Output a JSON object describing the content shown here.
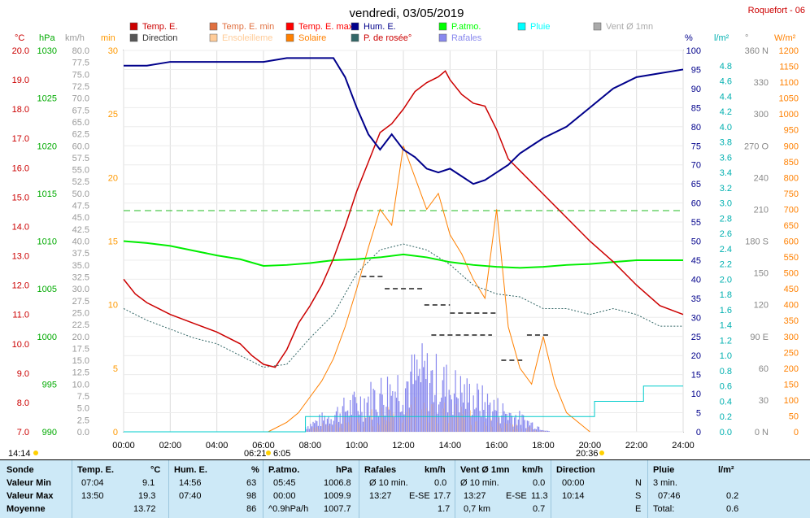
{
  "title": "vendredi, 03/05/2019",
  "station": "Roquefort - 06",
  "legend": [
    {
      "label": "Temp. E.",
      "color": "#cc0000"
    },
    {
      "label": "Temp. E. min",
      "color": "#e07040"
    },
    {
      "label": "Temp. E. max",
      "color": "#ff0000"
    },
    {
      "label": "Hum. E.",
      "color": "#00008b"
    },
    {
      "label": "P.atmo.",
      "color": "#00ff00"
    },
    {
      "label": "Pluie",
      "color": "#00ffff"
    },
    {
      "label": "Vent Ø 1mn",
      "color": "#aaaaaa"
    },
    {
      "label": "Direction",
      "color": "#555555"
    },
    {
      "label": "Ensoleilleme",
      "color": "#ffcc99"
    },
    {
      "label": "Solaire",
      "color": "#ff8000"
    },
    {
      "label": "P. de rosée°",
      "color": "#336666"
    },
    {
      "label": "Rafales",
      "color": "#8888ee"
    }
  ],
  "axes": {
    "temp_unit": "°C",
    "temp_ticks": [
      "20.0",
      "19.0",
      "18.0",
      "17.0",
      "16.0",
      "15.0",
      "14.0",
      "13.0",
      "12.0",
      "11.0",
      "10.0",
      "9.0",
      "8.0",
      "7.0"
    ],
    "press_unit": "hPa",
    "press_ticks": [
      "1030",
      "1025",
      "1020",
      "1015",
      "1010",
      "1005",
      "1000",
      "995",
      "990"
    ],
    "wind_unit": "km/h",
    "wind_ticks": [
      "80.0",
      "77.5",
      "75.0",
      "72.5",
      "70.0",
      "67.5",
      "65.0",
      "62.5",
      "60.0",
      "57.5",
      "55.0",
      "52.5",
      "50.0",
      "47.5",
      "45.0",
      "42.5",
      "40.0",
      "37.5",
      "35.0",
      "32.5",
      "30.0",
      "27.5",
      "25.0",
      "22.5",
      "20.0",
      "17.5",
      "15.0",
      "12.5",
      "10.0",
      "7.5",
      "5.0",
      "2.5",
      "0.0"
    ],
    "min_unit": "min",
    "min_ticks": [
      "30",
      "25",
      "20",
      "15",
      "10",
      "5",
      "0"
    ],
    "hum_unit": "%",
    "hum_ticks": [
      "100",
      "95",
      "90",
      "85",
      "80",
      "75",
      "70",
      "65",
      "60",
      "55",
      "50",
      "45",
      "40",
      "35",
      "30",
      "25",
      "20",
      "15",
      "10",
      "5",
      "0"
    ],
    "rain_unit": "l/m²",
    "rain_ticks": [
      "4.8",
      "4.6",
      "4.4",
      "4.2",
      "4.0",
      "3.8",
      "3.6",
      "3.4",
      "3.2",
      "3.0",
      "2.8",
      "2.6",
      "2.4",
      "2.2",
      "2.0",
      "1.8",
      "1.6",
      "1.4",
      "1.2",
      "1.0",
      "0.8",
      "0.6",
      "0.4",
      "0.2",
      "0.0"
    ],
    "dir_unit": "°",
    "dir_ticks": [
      "360 N",
      "330",
      "300",
      "270 O",
      "240",
      "210",
      "180 S",
      "150",
      "120",
      "90 E",
      "60",
      "30",
      "0 N"
    ],
    "sol_unit": "W/m²",
    "sol_ticks": [
      "1200",
      "1150",
      "1100",
      "1050",
      "1000",
      "950",
      "900",
      "850",
      "800",
      "750",
      "700",
      "650",
      "600",
      "550",
      "500",
      "450",
      "400",
      "350",
      "300",
      "250",
      "200",
      "150",
      "100",
      "50",
      "0"
    ],
    "x_ticks": [
      "00:00",
      "02:00",
      "04:00",
      "06:00",
      "08:00",
      "10:00",
      "12:00",
      "14:00",
      "16:00",
      "18:00",
      "20:00",
      "22:00",
      "24:00"
    ]
  },
  "sun_marks": {
    "left": "14:14",
    "sunrise": "06:21",
    "sunrise2": "6:05",
    "sunset": "20:36"
  },
  "chart_data": {
    "type": "line",
    "x_unit": "hours",
    "series": [
      {
        "name": "Temp. E.",
        "unit": "°C",
        "x": [
          0,
          0.5,
          1,
          1.5,
          2,
          3,
          4,
          5,
          5.5,
          6,
          6.5,
          7,
          7.5,
          8,
          8.5,
          9,
          9.5,
          10,
          10.5,
          11,
          11.5,
          12,
          12.5,
          13,
          13.5,
          13.8,
          14,
          14.5,
          15,
          15.5,
          16,
          16.5,
          17,
          18,
          19,
          20,
          21,
          22,
          23,
          24
        ],
        "y": [
          12.2,
          11.7,
          11.4,
          11.2,
          11.0,
          10.7,
          10.4,
          10.0,
          9.6,
          9.3,
          9.2,
          9.8,
          10.7,
          11.3,
          12.0,
          12.9,
          14.0,
          15.2,
          16.2,
          17.2,
          17.5,
          18.0,
          18.6,
          18.9,
          19.1,
          19.3,
          19.0,
          18.5,
          18.2,
          18.1,
          17.3,
          16.3,
          15.9,
          15.1,
          14.3,
          13.5,
          12.8,
          12.0,
          11.3,
          11.0
        ]
      },
      {
        "name": "Hum. E.",
        "unit": "%",
        "x": [
          0,
          1,
          2,
          3,
          4,
          5,
          6,
          7,
          8,
          9,
          9.5,
          10,
          10.5,
          11,
          11.5,
          12,
          12.5,
          13,
          13.5,
          14,
          14.5,
          15,
          15.5,
          16,
          16.5,
          17,
          17.5,
          18,
          19,
          20,
          21,
          22,
          23,
          24
        ],
        "y": [
          96,
          96,
          97,
          97,
          97,
          97,
          97,
          98,
          98,
          98,
          93,
          85,
          78,
          74,
          78,
          74,
          72,
          69,
          68,
          69,
          67,
          65,
          66,
          68,
          70,
          73,
          75,
          77,
          80,
          85,
          90,
          93,
          94,
          95
        ]
      },
      {
        "name": "P.atmo.",
        "unit": "hPa",
        "x": [
          0,
          1,
          2,
          3,
          4,
          5,
          6,
          7,
          8,
          9,
          10,
          11,
          12,
          13,
          14,
          15,
          16,
          17,
          18,
          19,
          20,
          21,
          22,
          23,
          24
        ],
        "y": [
          1010.0,
          1009.8,
          1009.5,
          1009.0,
          1008.5,
          1008.1,
          1007.4,
          1007.5,
          1007.7,
          1008.0,
          1008.1,
          1008.3,
          1008.6,
          1008.3,
          1007.8,
          1007.5,
          1007.3,
          1007.2,
          1007.3,
          1007.5,
          1007.6,
          1007.8,
          1008.0,
          1008.0,
          1008.0
        ]
      },
      {
        "name": "P. de rosée°",
        "unit": "°C",
        "x": [
          0,
          1,
          2,
          3,
          4,
          5,
          6,
          7,
          8,
          9,
          10,
          11,
          12,
          13,
          14,
          15,
          16,
          17,
          18,
          19,
          20,
          21,
          22,
          23,
          24
        ],
        "y": [
          11.2,
          10.8,
          10.5,
          10.2,
          10.0,
          9.6,
          9.2,
          9.3,
          10.2,
          11.0,
          12.4,
          13.2,
          13.4,
          13.2,
          12.7,
          12.0,
          11.7,
          11.6,
          11.2,
          11.2,
          11.0,
          11.2,
          11.0,
          10.6,
          10.6
        ]
      },
      {
        "name": "Solaire",
        "unit": "W/m²",
        "x": [
          6.2,
          7,
          7.5,
          8,
          8.5,
          9,
          9.5,
          10,
          10.5,
          11,
          11.5,
          12,
          12.5,
          13,
          13.5,
          14,
          14.5,
          15,
          15.5,
          16,
          16.5,
          17,
          17.5,
          18,
          18.5,
          19,
          19.5,
          20
        ],
        "y": [
          0,
          30,
          60,
          110,
          160,
          230,
          330,
          450,
          580,
          700,
          650,
          900,
          800,
          700,
          750,
          620,
          560,
          480,
          420,
          700,
          330,
          200,
          150,
          300,
          150,
          60,
          30,
          0
        ]
      },
      {
        "name": "Pluie",
        "unit": "l/m²",
        "x": [
          0,
          7.8,
          7.8,
          20.2,
          20.2,
          22.3,
          22.3,
          24
        ],
        "y": [
          0,
          0,
          0.2,
          0.2,
          0.4,
          0.4,
          0.6,
          0.6
        ]
      }
    ],
    "annotations": {
      "Temp. E. max line": 1007.9
    }
  },
  "table": {
    "headers": {
      "sonde": "Sonde",
      "temp": "Temp. E.",
      "temp_u": "°C",
      "hum": "Hum. E.",
      "hum_u": "%",
      "press": "P.atmo.",
      "press_u": "hPa",
      "raf": "Rafales",
      "raf_u": "km/h",
      "vent": "Vent Ø 1mn",
      "vent_u": "km/h",
      "dir": "Direction",
      "pluie": "Pluie",
      "pluie_u": "l/m²"
    },
    "rows": [
      {
        "label": "Valeur Min",
        "t_time": "07:04",
        "t_val": "9.1",
        "h_time": "14:56",
        "h_val": "63",
        "p_time": "05:45",
        "p_val": "1006.8",
        "r_lbl": "Ø 10 min.",
        "r_val": "0.0",
        "v_lbl": "Ø 10 min.",
        "v_val": "0.0",
        "d_time": "00:00",
        "d_val": "N",
        "pl_lbl": "3 min.",
        "pl_val": ""
      },
      {
        "label": "Valeur Max",
        "t_time": "13:50",
        "t_val": "19.3",
        "h_time": "07:40",
        "h_val": "98",
        "p_time": "00:00",
        "p_val": "1009.9",
        "r_lbl": "13:27",
        "r_dir": "E-SE",
        "r_val": "17.7",
        "v_lbl": "13:27",
        "v_dir": "E-SE",
        "v_val": "11.3",
        "d_time": "10:14",
        "d_val": "S",
        "pl_lbl": "07:46",
        "pl_val": "0.2"
      },
      {
        "label": "Moyenne",
        "t_time": "",
        "t_val": "13.72",
        "h_time": "",
        "h_val": "86",
        "p_time": "^0.9hPa/h",
        "p_val": "1007.7",
        "r_lbl": "",
        "r_val": "1.7",
        "v_lbl": "0,7 km",
        "v_val": "0.7",
        "d_time": "",
        "d_val": "E",
        "pl_lbl": "Total:",
        "pl_val": "0.6"
      }
    ]
  }
}
